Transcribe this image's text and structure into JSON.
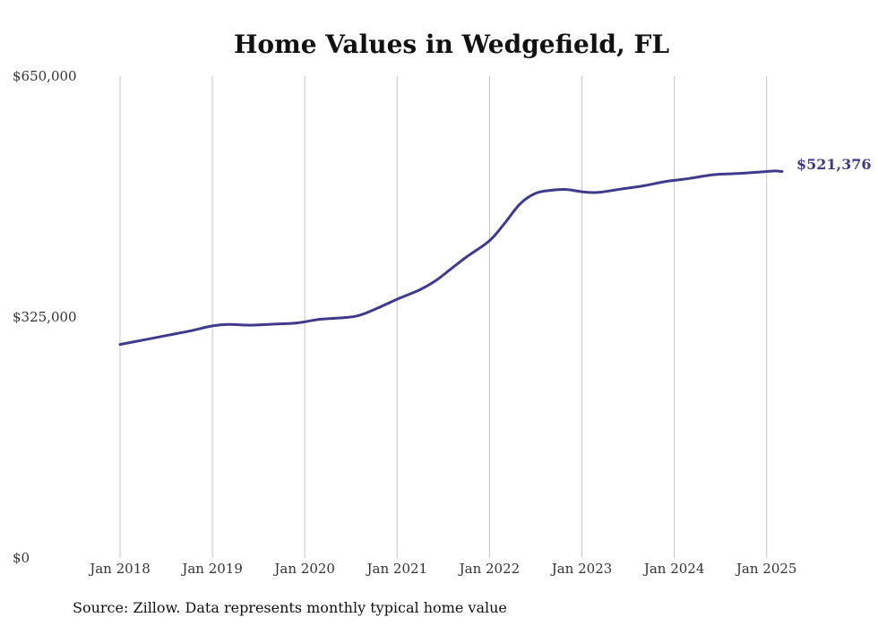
{
  "chart_data": {
    "type": "line",
    "title": "Home Values in Wedgefield, FL",
    "xlabel": "",
    "ylabel": "",
    "source_note": "Source: Zillow. Data represents monthly typical home value",
    "end_label": "$521,376",
    "line_color": "#3f3a8c",
    "grid": "vertical",
    "x_range": [
      "2018-01",
      "2025-03"
    ],
    "ylim": [
      0,
      650000
    ],
    "y_ticks": [
      {
        "value": 0,
        "label": "$0"
      },
      {
        "value": 325000,
        "label": "$325,000"
      },
      {
        "value": 650000,
        "label": "$650,000"
      }
    ],
    "x_ticks": [
      {
        "date": "2018-01",
        "label": "Jan 2018"
      },
      {
        "date": "2019-01",
        "label": "Jan 2019"
      },
      {
        "date": "2020-01",
        "label": "Jan 2020"
      },
      {
        "date": "2021-01",
        "label": "Jan 2021"
      },
      {
        "date": "2022-01",
        "label": "Jan 2022"
      },
      {
        "date": "2023-01",
        "label": "Jan 2023"
      },
      {
        "date": "2024-01",
        "label": "Jan 2024"
      },
      {
        "date": "2025-01",
        "label": "Jan 2025"
      }
    ],
    "series": [
      {
        "points": [
          {
            "x": "2018-01",
            "y": 288000
          },
          {
            "x": "2018-04",
            "y": 294000
          },
          {
            "x": "2018-07",
            "y": 300000
          },
          {
            "x": "2018-10",
            "y": 306000
          },
          {
            "x": "2019-01",
            "y": 313000
          },
          {
            "x": "2019-03",
            "y": 315000
          },
          {
            "x": "2019-06",
            "y": 314000
          },
          {
            "x": "2019-09",
            "y": 315500
          },
          {
            "x": "2019-12",
            "y": 317000
          },
          {
            "x": "2020-03",
            "y": 322000
          },
          {
            "x": "2020-06",
            "y": 324000
          },
          {
            "x": "2020-08",
            "y": 327000
          },
          {
            "x": "2020-10",
            "y": 335000
          },
          {
            "x": "2021-01",
            "y": 349000
          },
          {
            "x": "2021-04",
            "y": 362000
          },
          {
            "x": "2021-06",
            "y": 374000
          },
          {
            "x": "2021-08",
            "y": 390000
          },
          {
            "x": "2021-10",
            "y": 406000
          },
          {
            "x": "2022-01",
            "y": 428000
          },
          {
            "x": "2022-03",
            "y": 452000
          },
          {
            "x": "2022-05",
            "y": 478000
          },
          {
            "x": "2022-07",
            "y": 492000
          },
          {
            "x": "2022-09",
            "y": 496000
          },
          {
            "x": "2022-11",
            "y": 497000
          },
          {
            "x": "2023-01",
            "y": 494000
          },
          {
            "x": "2023-03",
            "y": 493000
          },
          {
            "x": "2023-06",
            "y": 497500
          },
          {
            "x": "2023-09",
            "y": 502000
          },
          {
            "x": "2023-12",
            "y": 508000
          },
          {
            "x": "2024-03",
            "y": 512000
          },
          {
            "x": "2024-06",
            "y": 517000
          },
          {
            "x": "2024-09",
            "y": 518500
          },
          {
            "x": "2024-12",
            "y": 520500
          },
          {
            "x": "2025-02",
            "y": 522000
          },
          {
            "x": "2025-03",
            "y": 521376
          }
        ]
      }
    ]
  }
}
